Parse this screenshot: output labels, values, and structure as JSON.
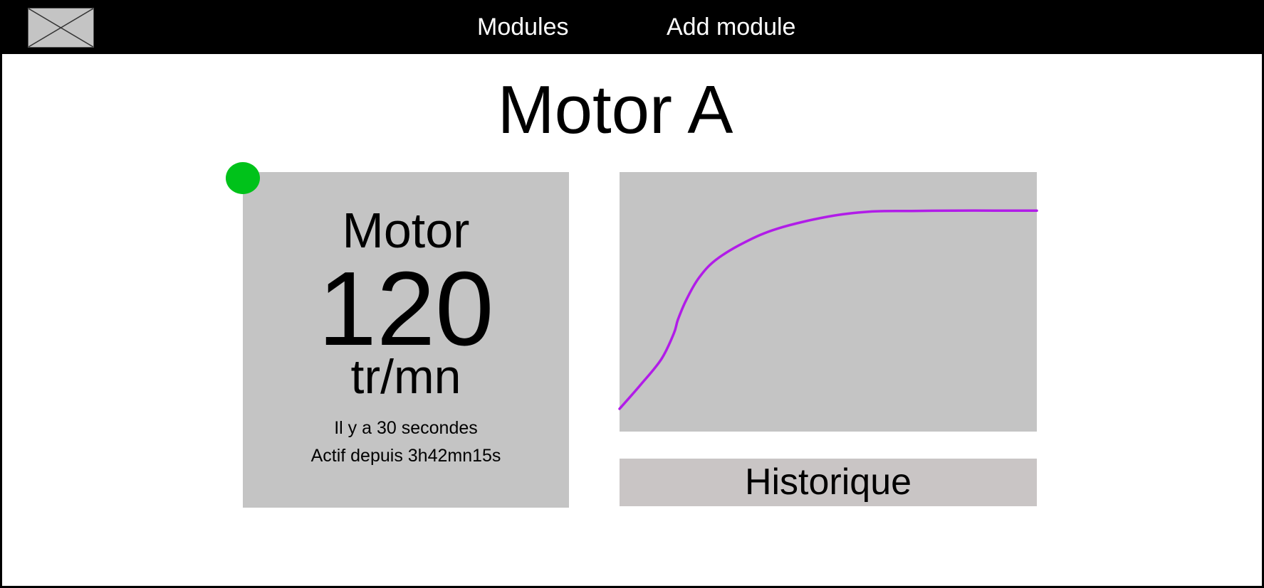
{
  "navbar": {
    "logo_icon": "image-placeholder-icon",
    "modules_label": "Modules",
    "add_module_label": "Add module"
  },
  "page": {
    "title": "Motor A"
  },
  "motor_card": {
    "label": "Motor",
    "value": "120",
    "unit": "tr/mn",
    "last_update": "Il y a 30 secondes",
    "uptime": "Actif depuis 3h42mn15s",
    "status_color": "#00c21a",
    "status": "active"
  },
  "chart_data": {
    "type": "line",
    "title": "",
    "xlabel": "",
    "ylabel": "",
    "line_color": "#b11ce8",
    "background": "#c4c4c4",
    "grid": false,
    "x": [
      0,
      0.05,
      0.1,
      0.13,
      0.14,
      0.16,
      0.19,
      0.23,
      0.3,
      0.38,
      0.5,
      0.6,
      0.7,
      0.8,
      0.9,
      1.0
    ],
    "y": [
      0,
      0.12,
      0.25,
      0.38,
      0.45,
      0.55,
      0.66,
      0.75,
      0.84,
      0.91,
      0.97,
      0.995,
      0.998,
      1.0,
      1.0,
      1.0
    ],
    "ylim": [
      0,
      1.18
    ],
    "xlim": [
      0,
      1
    ]
  },
  "history_button": {
    "label": "Historique"
  }
}
